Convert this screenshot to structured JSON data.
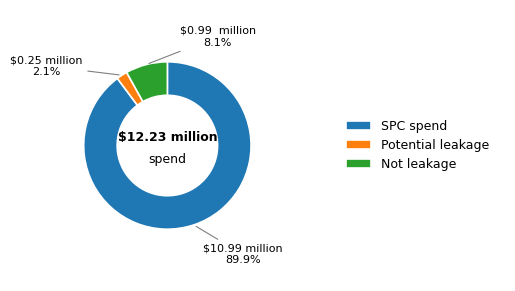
{
  "chart_data": {
    "type": "pie",
    "categories": [
      "SPC spend",
      "Potential leakage",
      "Not leakage"
    ],
    "values": [
      89.9,
      2.1,
      8.1
    ],
    "value_labels": [
      "$10.99 million\n89.9%",
      "$0.25 million\n2.1%",
      "$0.99  million\n8.1%"
    ],
    "data_labels": true,
    "annotations": [
      "$12.23 million",
      "spend"
    ],
    "legend": "center left"
  }
}
